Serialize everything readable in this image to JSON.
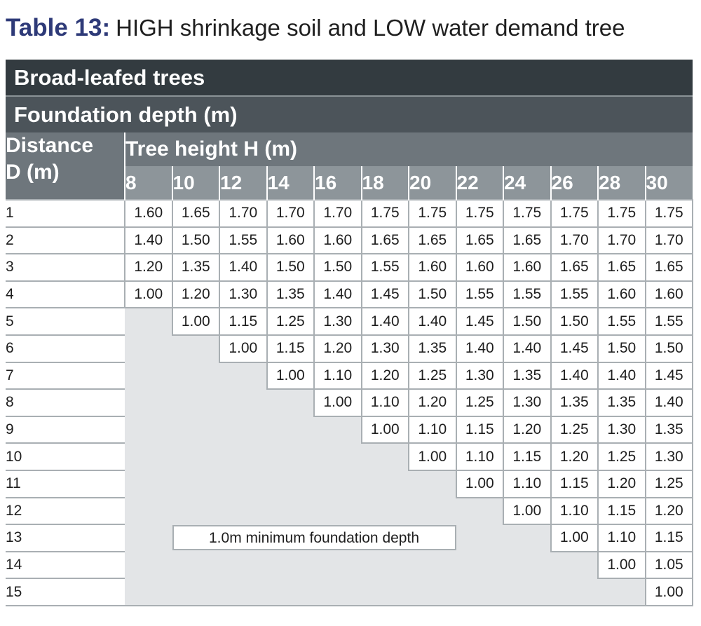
{
  "title": {
    "label": "Table 13:",
    "text": "HIGH shrinkage soil and LOW water demand tree"
  },
  "table": {
    "section_title": "Broad-leafed trees",
    "subtitle": "Foundation depth (m)",
    "distance_header_line1": "Distance",
    "distance_header_line2": "D (m)",
    "tree_height_header": "Tree height H (m)",
    "heights": [
      "8",
      "10",
      "12",
      "14",
      "16",
      "18",
      "20",
      "22",
      "24",
      "26",
      "28",
      "30"
    ],
    "rows": [
      {
        "distance": "1",
        "values": [
          "1.60",
          "1.65",
          "1.70",
          "1.70",
          "1.70",
          "1.75",
          "1.75",
          "1.75",
          "1.75",
          "1.75",
          "1.75",
          "1.75"
        ]
      },
      {
        "distance": "2",
        "values": [
          "1.40",
          "1.50",
          "1.55",
          "1.60",
          "1.60",
          "1.65",
          "1.65",
          "1.65",
          "1.65",
          "1.70",
          "1.70",
          "1.70"
        ]
      },
      {
        "distance": "3",
        "values": [
          "1.20",
          "1.35",
          "1.40",
          "1.50",
          "1.50",
          "1.55",
          "1.60",
          "1.60",
          "1.60",
          "1.65",
          "1.65",
          "1.65"
        ]
      },
      {
        "distance": "4",
        "values": [
          "1.00",
          "1.20",
          "1.30",
          "1.35",
          "1.40",
          "1.45",
          "1.50",
          "1.55",
          "1.55",
          "1.55",
          "1.60",
          "1.60"
        ]
      },
      {
        "distance": "5",
        "values": [
          null,
          "1.00",
          "1.15",
          "1.25",
          "1.30",
          "1.40",
          "1.40",
          "1.45",
          "1.50",
          "1.50",
          "1.55",
          "1.55"
        ]
      },
      {
        "distance": "6",
        "values": [
          null,
          null,
          "1.00",
          "1.15",
          "1.20",
          "1.30",
          "1.35",
          "1.40",
          "1.40",
          "1.45",
          "1.50",
          "1.50"
        ]
      },
      {
        "distance": "7",
        "values": [
          null,
          null,
          null,
          "1.00",
          "1.10",
          "1.20",
          "1.25",
          "1.30",
          "1.35",
          "1.40",
          "1.40",
          "1.45"
        ]
      },
      {
        "distance": "8",
        "values": [
          null,
          null,
          null,
          null,
          "1.00",
          "1.10",
          "1.20",
          "1.25",
          "1.30",
          "1.35",
          "1.35",
          "1.40"
        ]
      },
      {
        "distance": "9",
        "values": [
          null,
          null,
          null,
          null,
          null,
          "1.00",
          "1.10",
          "1.15",
          "1.20",
          "1.25",
          "1.30",
          "1.35"
        ]
      },
      {
        "distance": "10",
        "values": [
          null,
          null,
          null,
          null,
          null,
          null,
          "1.00",
          "1.10",
          "1.15",
          "1.20",
          "1.25",
          "1.30"
        ]
      },
      {
        "distance": "11",
        "values": [
          null,
          null,
          null,
          null,
          null,
          null,
          null,
          "1.00",
          "1.10",
          "1.15",
          "1.20",
          "1.25"
        ]
      },
      {
        "distance": "12",
        "values": [
          null,
          null,
          null,
          null,
          null,
          null,
          null,
          null,
          "1.00",
          "1.10",
          "1.15",
          "1.20"
        ]
      },
      {
        "distance": "13",
        "values": [
          null,
          null,
          null,
          null,
          null,
          null,
          null,
          null,
          null,
          "1.00",
          "1.10",
          "1.15"
        ]
      },
      {
        "distance": "14",
        "values": [
          null,
          null,
          null,
          null,
          null,
          null,
          null,
          null,
          null,
          null,
          "1.00",
          "1.05"
        ]
      },
      {
        "distance": "15",
        "values": [
          null,
          null,
          null,
          null,
          null,
          null,
          null,
          null,
          null,
          null,
          null,
          "1.00"
        ]
      }
    ],
    "note": "1.0m minimum foundation depth",
    "note_row_distance": "13",
    "colors": {
      "section_bg": "#333b40",
      "subtitle_bg": "#4c545a",
      "header_bg": "#6e767c",
      "height_header_bg": "#8d959a",
      "empty_bg": "#e3e5e7",
      "title_label": "#2e3a78"
    }
  }
}
